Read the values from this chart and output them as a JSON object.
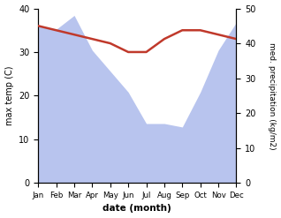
{
  "months": [
    "Jan",
    "Feb",
    "Mar",
    "Apr",
    "May",
    "Jun",
    "Jul",
    "Aug",
    "Sep",
    "Oct",
    "Nov",
    "Dec"
  ],
  "precipitation": [
    45,
    44,
    48,
    38,
    32,
    26,
    17,
    17,
    16,
    26,
    38,
    46
  ],
  "max_temp": [
    36,
    35,
    34,
    33,
    32,
    30,
    30,
    33,
    35,
    35,
    34,
    33
  ],
  "precip_color": "#b8c4ee",
  "temp_color": "#c0392b",
  "xlabel": "date (month)",
  "ylabel_left": "max temp (C)",
  "ylabel_right": "med. precipitation (kg/m2)",
  "ylim_left": [
    0,
    40
  ],
  "ylim_right": [
    0,
    50
  ],
  "yticks_left": [
    0,
    10,
    20,
    30,
    40
  ],
  "yticks_right": [
    0,
    10,
    20,
    30,
    40,
    50
  ],
  "fill_alpha": 1.0,
  "temp_linewidth": 1.8
}
